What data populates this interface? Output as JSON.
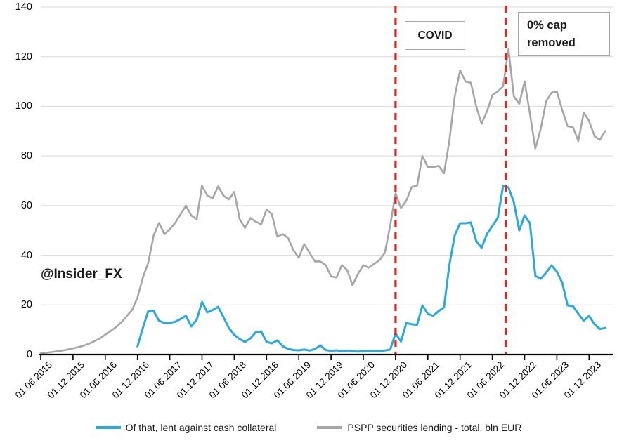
{
  "watermark": "@Insider_FX",
  "annotations": {
    "covid_label": "COVID",
    "cap_removed_label": "0% cap removed"
  },
  "legend": {
    "cash_label": "Of that, lent against cash collateral",
    "total_label": "PSPP securities lending - total, bln EUR"
  },
  "chart_data": {
    "type": "line",
    "title": "",
    "xlabel": "",
    "ylabel": "",
    "ylim": [
      0,
      140
    ],
    "y_ticks": [
      0,
      20,
      40,
      60,
      80,
      100,
      120,
      140
    ],
    "grid": true,
    "legend_position": "bottom",
    "x_tick_labels": [
      "01.06.2015",
      "01.12.2015",
      "01.06.2016",
      "01.12.2016",
      "01.06.2017",
      "01.12.2017",
      "01.06.2018",
      "01.12.2018",
      "01.06.2019",
      "01.12.2019",
      "01.06.2020",
      "01.12.2020",
      "01.06.2021",
      "01.12.2021",
      "01.06.2022",
      "01.12.2022",
      "01.06.2023",
      "01.12.2023"
    ],
    "x_frequency": "monthly",
    "x_first_label": "01.06.2015",
    "months_per_tick": 6,
    "colors": {
      "grid": "#d9d9d9",
      "axis": "#000000",
      "event_line": "#ee2019",
      "box_border": "#a6a6a6"
    },
    "series": [
      {
        "name": "PSPP securities lending - total, bln EUR",
        "color": "#a6a6a6",
        "width": 2.6,
        "values": [
          0.5,
          0.7,
          1.0,
          1.3,
          1.6,
          2.0,
          2.5,
          3.0,
          3.6,
          4.4,
          5.4,
          6.5,
          8.0,
          9.5,
          11,
          13,
          15.5,
          18,
          23,
          31,
          37,
          48,
          53,
          48.5,
          50.5,
          53,
          56.5,
          60,
          56,
          54.5,
          68,
          64,
          63,
          67.8,
          64,
          62.5,
          65.5,
          54.5,
          51,
          55,
          53.5,
          52.5,
          58.5,
          56.5,
          47.5,
          48.5,
          47,
          42,
          39,
          44.5,
          41,
          37.5,
          37.5,
          36,
          31.5,
          31,
          36,
          34,
          28,
          32.5,
          36,
          35,
          36.5,
          38,
          41,
          52,
          65,
          59,
          62,
          67.5,
          68,
          80,
          75.5,
          75.5,
          76,
          73,
          86,
          104,
          114.5,
          110,
          109.5,
          100,
          93,
          98,
          104.5,
          106,
          108,
          123,
          104,
          101,
          110,
          97,
          83,
          91,
          102,
          105.5,
          106,
          98.5,
          92,
          91.5,
          86,
          97.5,
          94,
          88,
          86.5,
          90
        ]
      },
      {
        "name": "Of that, lent against cash collateral",
        "color": "#29a9e1",
        "width": 3,
        "values": [
          null,
          null,
          null,
          null,
          null,
          null,
          null,
          null,
          null,
          null,
          null,
          null,
          null,
          null,
          null,
          null,
          null,
          null,
          3.3,
          10.7,
          17.5,
          17.5,
          13.6,
          12.7,
          12.7,
          13.2,
          14.3,
          15.6,
          11.3,
          14,
          21.2,
          17,
          18,
          19.2,
          15,
          10.7,
          7.9,
          6.2,
          5.1,
          6.5,
          9,
          9.3,
          5.1,
          4.5,
          5.7,
          3.4,
          2.3,
          1.8,
          1.7,
          2.0,
          1.6,
          2.2,
          3.7,
          1.8,
          1.5,
          1.7,
          1.4,
          1.6,
          1.3,
          1.2,
          1.4,
          1.3,
          1.5,
          1.4,
          1.6,
          2.0,
          8.5,
          5.2,
          12.7,
          12.2,
          12.0,
          19.8,
          16.4,
          15.6,
          17.5,
          19,
          36,
          48,
          52.9,
          52.9,
          53.2,
          45.8,
          43,
          48.6,
          51.8,
          55,
          67.9,
          67.3,
          61.4,
          50,
          56,
          52.9,
          31.7,
          30.5,
          33,
          35.9,
          33.4,
          28.9,
          19.8,
          19.5,
          16.4,
          13.6,
          15.6,
          12.2,
          10.3,
          10.7
        ]
      }
    ],
    "event_lines": [
      {
        "label": "COVID",
        "month_index": 66
      },
      {
        "label": "0% cap removed",
        "month_index": 86.5
      }
    ]
  }
}
